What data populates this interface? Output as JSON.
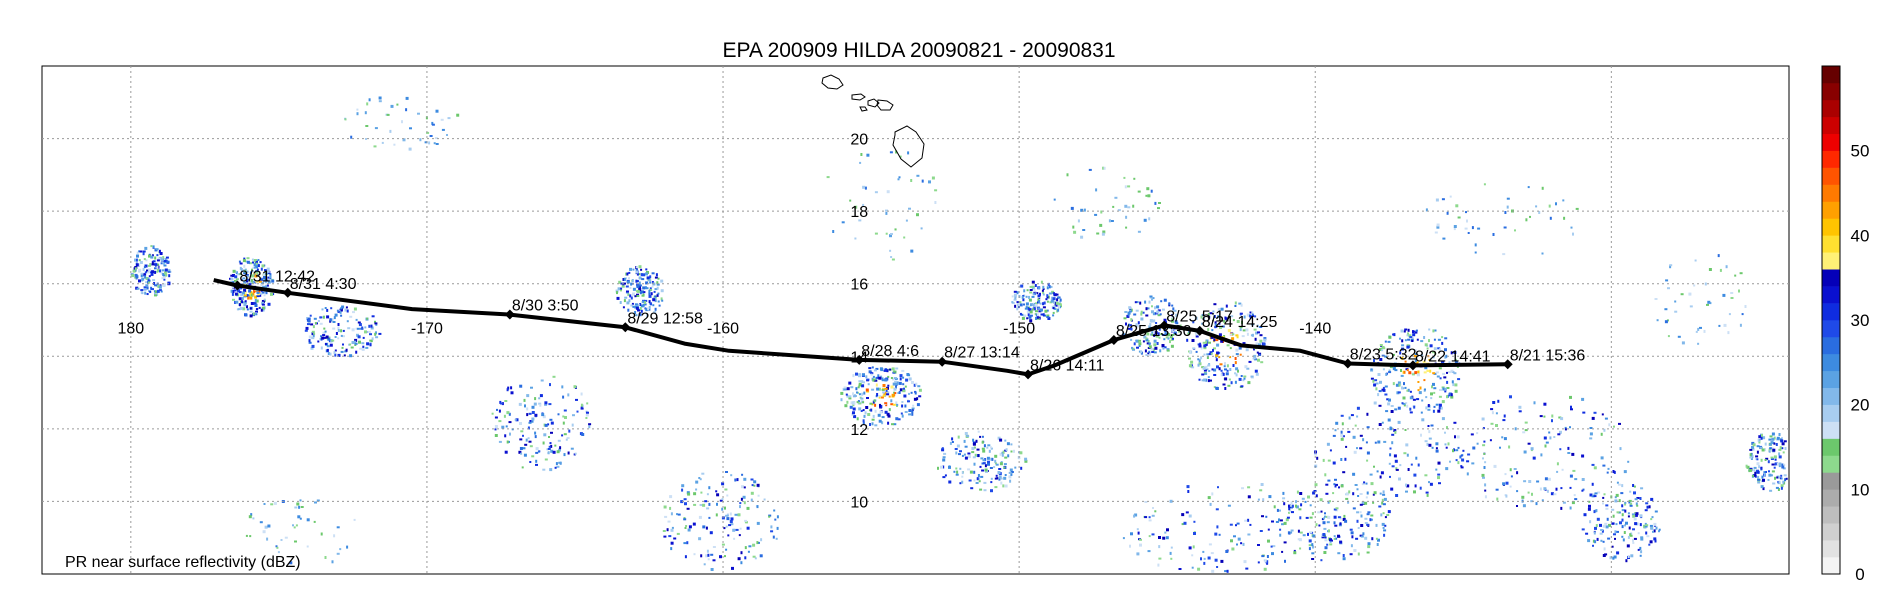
{
  "title": "EPA 200909 HILDA 20090821 - 20090831",
  "bottom_label": "PR near surface reflectivity (dBZ)",
  "map": {
    "lon_range": [
      -183,
      -124
    ],
    "lat_range": [
      8,
      22
    ],
    "lon_labels": [
      {
        "value": -180,
        "text": "180"
      },
      {
        "value": -170,
        "text": "-170"
      },
      {
        "value": -160,
        "text": "-160"
      },
      {
        "value": -150,
        "text": "-150"
      },
      {
        "value": -140,
        "text": "-140"
      }
    ],
    "lat_labels": [
      {
        "value": 20,
        "text": "20"
      },
      {
        "value": 18,
        "text": "18"
      },
      {
        "value": 16,
        "text": "16"
      },
      {
        "value": 14,
        "text": "14"
      },
      {
        "value": 12,
        "text": "12"
      },
      {
        "value": 10,
        "text": "10"
      }
    ],
    "gridline_lons": [
      -180,
      -170,
      -160,
      -150,
      -140,
      -130
    ],
    "gridline_lats": [
      10,
      12,
      14,
      16,
      18,
      20
    ],
    "lat_label_lon": -155.4,
    "lon_label_lat": 14.8
  },
  "track": {
    "points": [
      {
        "lon": -177.2,
        "lat": 16.1
      },
      {
        "lon": -176.4,
        "lat": 15.95,
        "label": "8/31 12:42"
      },
      {
        "lon": -174.7,
        "lat": 15.75,
        "label": "8/31 4:30"
      },
      {
        "lon": -170.5,
        "lat": 15.3
      },
      {
        "lon": -167.2,
        "lat": 15.15,
        "label": "8/30 3:50"
      },
      {
        "lon": -163.3,
        "lat": 14.8,
        "label": "8/29 12:58"
      },
      {
        "lon": -161.3,
        "lat": 14.35
      },
      {
        "lon": -159.8,
        "lat": 14.15
      },
      {
        "lon": -155.4,
        "lat": 13.9,
        "label": "8/28 4:6"
      },
      {
        "lon": -152.6,
        "lat": 13.85,
        "label": "8/27 13:14"
      },
      {
        "lon": -150.4,
        "lat": 13.6
      },
      {
        "lon": -149.7,
        "lat": 13.5,
        "label": "8/26 14:11"
      },
      {
        "lon": -148.8,
        "lat": 13.75
      },
      {
        "lon": -146.8,
        "lat": 14.45,
        "label": "8/25 13:30"
      },
      {
        "lon": -145.1,
        "lat": 14.85,
        "label": "8/25 5:17"
      },
      {
        "lon": -143.9,
        "lat": 14.7,
        "label": "8/24 14:25"
      },
      {
        "lon": -142.5,
        "lat": 14.3
      },
      {
        "lon": -140.5,
        "lat": 14.15
      },
      {
        "lon": -138.9,
        "lat": 13.8,
        "label": "8/23 5:32"
      },
      {
        "lon": -136.7,
        "lat": 13.75,
        "label": "8/22 14:41"
      },
      {
        "lon": -133.5,
        "lat": 13.78,
        "label": "8/21 15:36"
      }
    ]
  },
  "colorbar": {
    "min": 0,
    "max": 60,
    "tick_labels": [
      0,
      10,
      20,
      30,
      40,
      50
    ],
    "colors": [
      "#f4f4f4",
      "#e2e2e2",
      "#d0d0d0",
      "#bebebe",
      "#acacac",
      "#9a9a9a",
      "#8dd98d",
      "#6cc86c",
      "#cde0f5",
      "#a8cdf0",
      "#82b8ea",
      "#5ba2e3",
      "#3d8be0",
      "#2a6de0",
      "#1f4ae8",
      "#0f2ce0",
      "#0a10d0",
      "#0500b8",
      "#fff176",
      "#ffe030",
      "#ffc400",
      "#ffa000",
      "#ff7a00",
      "#ff5400",
      "#ff2800",
      "#ee0000",
      "#cc0000",
      "#aa0000",
      "#880000",
      "#660000"
    ]
  },
  "colors": {
    "track": "#000000",
    "grid": "#9a9a9a",
    "coast": "#000000"
  }
}
